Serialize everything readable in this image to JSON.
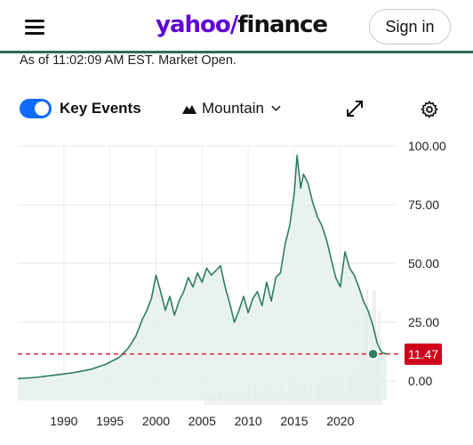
{
  "header": {
    "logo_yahoo": "yahoo",
    "logo_slash": "/",
    "logo_finance": "finance",
    "signin_label": "Sign in",
    "menu_icon": "hamburger-menu-icon"
  },
  "status": {
    "as_of": "As of 11:02:09 AM EST. Market Open."
  },
  "toolbar": {
    "key_events_label": "Key Events",
    "key_events_on": true,
    "chart_type_label": "Mountain",
    "chart_type_icon": "mountain-icon",
    "expand_icon": "expand-icon",
    "settings_icon": "gear-icon"
  },
  "colors": {
    "accent": "#0f69ff",
    "line": "#2e7d62",
    "fill": "#e3efea",
    "price_tag": "#d0021b",
    "baseline": "#d0021b",
    "brand": "#6001d2"
  },
  "chart_data": {
    "type": "area",
    "current_price": "11.47",
    "current_value": 11.47,
    "y_ticks": [
      "100.00",
      "75.00",
      "50.00",
      "25.00",
      "0.00"
    ],
    "y_tick_values": [
      100,
      75,
      50,
      25,
      0
    ],
    "x_ticks": [
      "1990",
      "1995",
      "2000",
      "2005",
      "2010",
      "2015",
      "2020"
    ],
    "x_tick_values": [
      1990,
      1995,
      2000,
      2005,
      2010,
      2015,
      2020
    ],
    "ylim": [
      0,
      100
    ],
    "xlim": [
      1985,
      2026
    ],
    "grid": true,
    "series": [
      {
        "x": [
          1985.0,
          1987.0,
          1989.0,
          1991.0,
          1993.0,
          1994.5,
          1996.0,
          1997.0,
          1997.8,
          1998.5,
          1999.0,
          1999.5,
          2000.0,
          2000.5,
          2001.0,
          2001.5,
          2002.0,
          2002.5,
          2003.0,
          2003.5,
          2004.0,
          2004.5,
          2005.0,
          2005.5,
          2006.0,
          2006.5,
          2007.0,
          2007.5,
          2008.0,
          2008.5,
          2009.0,
          2009.5,
          2010.0,
          2010.5,
          2011.0,
          2011.5,
          2012.0,
          2012.5,
          2013.0,
          2013.5,
          2014.0,
          2014.5,
          2015.0,
          2015.3,
          2015.7,
          2016.0,
          2016.5,
          2017.0,
          2017.5,
          2018.0,
          2018.5,
          2019.0,
          2019.5,
          2020.0,
          2020.5,
          2021.0,
          2021.5,
          2022.0,
          2022.5,
          2023.0,
          2023.5,
          2024.0,
          2024.5,
          2025.0
        ],
        "y": [
          1.0,
          1.5,
          2.5,
          3.5,
          5.0,
          7.0,
          10.0,
          14.0,
          19.0,
          26.0,
          30.0,
          35.0,
          45.0,
          38.0,
          30.0,
          36.0,
          28.0,
          34.0,
          38.0,
          44.0,
          40.0,
          46.0,
          42.0,
          48.0,
          45.0,
          47.0,
          49.0,
          40.0,
          33.0,
          25.0,
          30.0,
          36.0,
          29.0,
          35.0,
          38.0,
          32.0,
          42.0,
          34.0,
          44.0,
          46.0,
          58.0,
          66.0,
          80.0,
          96.0,
          82.0,
          88.0,
          84.0,
          76.0,
          70.0,
          66.0,
          60.0,
          52.0,
          44.0,
          40.0,
          55.0,
          48.0,
          45.0,
          40.0,
          34.0,
          30.0,
          24.0,
          16.0,
          12.0,
          11.47
        ]
      }
    ]
  }
}
